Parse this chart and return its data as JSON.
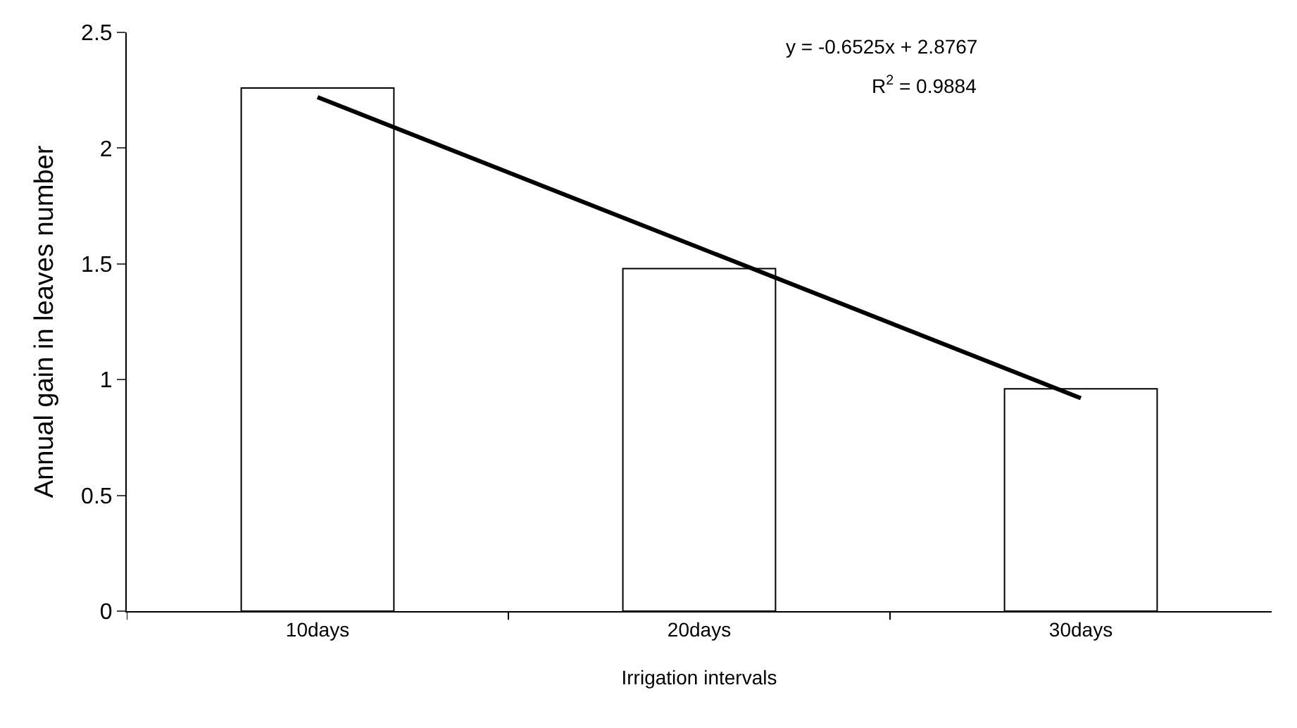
{
  "chart_data": {
    "type": "bar",
    "xlabel": "Irrigation intervals",
    "ylabel": "Annual gain in leaves number",
    "categories": [
      "10days",
      "20days",
      "30days"
    ],
    "series": [
      {
        "color": "#ffffff",
        "values": [
          2.26,
          1.48,
          0.96
        ]
      },
      {
        "type": "line",
        "color": "#000000",
        "x": [
          "10days",
          "20days",
          "30days"
        ],
        "values": [
          2.22,
          1.57,
          0.92
        ]
      }
    ],
    "ylim": [
      0,
      2.5
    ],
    "yticks": [
      0,
      0.5,
      1,
      1.5,
      2,
      2.5
    ],
    "grid": false,
    "annotations": [
      "y = -0.6525x + 2.8767",
      "R$^{2}$ = 0.9884"
    ]
  }
}
